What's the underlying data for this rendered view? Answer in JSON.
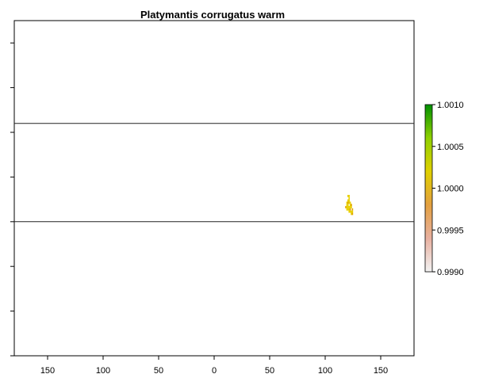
{
  "title": "Platymantis corrugatus warm",
  "map": {
    "x_axis": {
      "tick_labels": [
        "150",
        "100",
        "50",
        "0",
        "50",
        "100",
        "150"
      ],
      "tick_values": [
        -150,
        -100,
        -50,
        0,
        50,
        100,
        150
      ],
      "range": [
        -180,
        180
      ]
    },
    "y_axis": {
      "range": [
        -60,
        90
      ],
      "tick_values": [
        -60,
        -40,
        -20,
        0,
        20,
        40,
        60,
        80
      ],
      "tick_labels": []
    },
    "reference_lines_lat": [
      0,
      44
    ],
    "occupied_cells": [
      [
        118.5,
        6.5
      ],
      [
        119.5,
        6.5
      ],
      [
        119.5,
        7.5
      ],
      [
        120.5,
        7.5
      ],
      [
        119.5,
        8.5
      ],
      [
        120.5,
        8.5
      ],
      [
        120.5,
        9.5
      ],
      [
        121.5,
        9.5
      ],
      [
        120.5,
        5.5
      ],
      [
        121.5,
        5.5
      ],
      [
        122.5,
        5.5
      ],
      [
        121.5,
        6.5
      ],
      [
        122.5,
        6.5
      ],
      [
        123.5,
        6.5
      ],
      [
        122.5,
        7.5
      ],
      [
        123.5,
        7.5
      ],
      [
        121.5,
        4.5
      ],
      [
        122.5,
        4.5
      ],
      [
        123.5,
        4.5
      ],
      [
        123.5,
        3.5
      ],
      [
        124.5,
        3.5
      ],
      [
        121.5,
        10.5
      ],
      [
        120.5,
        11.5
      ],
      [
        121.5,
        11.5
      ],
      [
        119.5,
        5.5
      ],
      [
        124.5,
        5.5
      ],
      [
        124.5,
        4.5
      ],
      [
        122.5,
        8.5
      ],
      [
        121.5,
        8.5
      ],
      [
        120.5,
        6.5
      ]
    ],
    "cell_value": 1.0
  },
  "legend": {
    "labels": [
      "1.0010",
      "1.0005",
      "1.0000",
      "0.9995",
      "0.9990"
    ],
    "values": [
      1.001,
      1.0005,
      1.0,
      0.9995,
      0.999
    ],
    "range": [
      0.999,
      1.001
    ]
  },
  "colors": {
    "cell": "#e8d000",
    "cell_edge": "#e0a000",
    "scale": [
      "#f2f2f2",
      "#e8b0a0",
      "#e3a040",
      "#e0d000",
      "#8fd000",
      "#009000"
    ]
  }
}
